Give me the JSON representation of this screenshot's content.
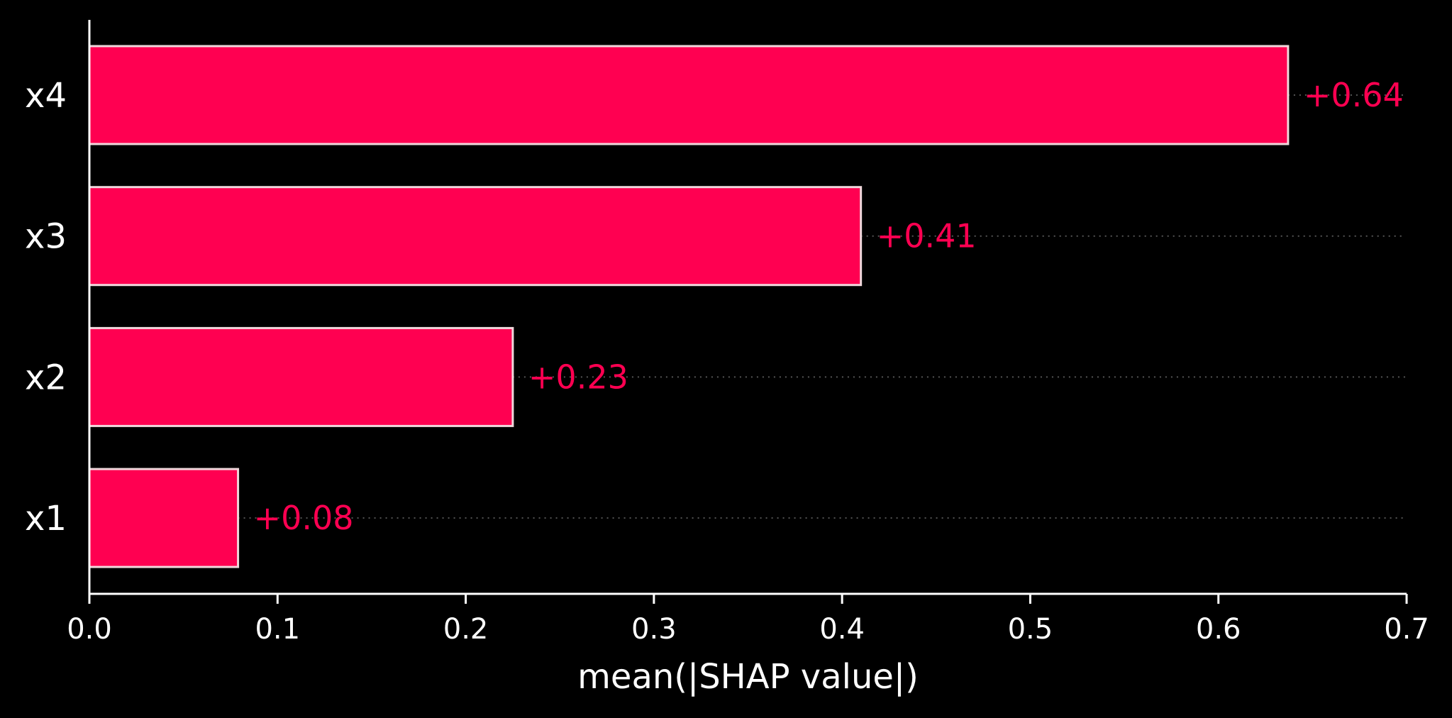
{
  "chart_data": {
    "type": "bar",
    "orientation": "horizontal",
    "categories": [
      "x4",
      "x3",
      "x2",
      "x1"
    ],
    "values": [
      0.637,
      0.41,
      0.225,
      0.079
    ],
    "value_labels": [
      "+0.64",
      "+0.41",
      "+0.23",
      "+0.08"
    ],
    "title": "",
    "xlabel": "mean(|SHAP value|)",
    "ylabel": "",
    "xlim": [
      0,
      0.7
    ],
    "xticks": [
      0.0,
      0.1,
      0.2,
      0.3,
      0.4,
      0.5,
      0.6,
      0.7
    ],
    "xtick_labels": [
      "0.0",
      "0.1",
      "0.2",
      "0.3",
      "0.4",
      "0.5",
      "0.6",
      "0.7"
    ],
    "grid": "dotted horizontal guide per bar",
    "legend": "none"
  },
  "colors": {
    "background": "#000000",
    "bar_fill": "#ff0051",
    "bar_edge": "#f0d8dc",
    "value_label": "#ff0051",
    "axis": "#ffffff",
    "text": "#ffffff",
    "guide_line": "#555555"
  }
}
